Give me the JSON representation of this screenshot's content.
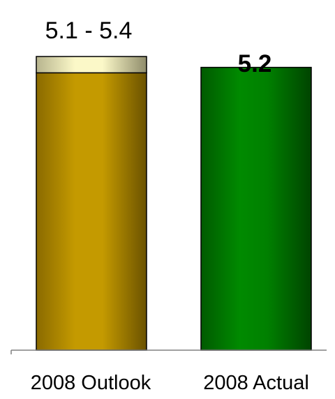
{
  "chart_data": {
    "type": "bar",
    "categories": [
      "2008 Outlook",
      "2008 Actual"
    ],
    "bars": [
      {
        "category": "2008 Outlook",
        "low": 5.1,
        "high": 5.4,
        "label": "5.1 - 5.4",
        "color": "#c49a00",
        "range_color": "#fbf8c8",
        "label_bold": false
      },
      {
        "category": "2008 Actual",
        "value": 5.2,
        "label": "5.2",
        "color": "#008000",
        "label_bold": true
      }
    ],
    "ylim": [
      0,
      5.4
    ],
    "title": "",
    "xlabel": "",
    "ylabel": "",
    "grid": false,
    "legend": "none"
  }
}
